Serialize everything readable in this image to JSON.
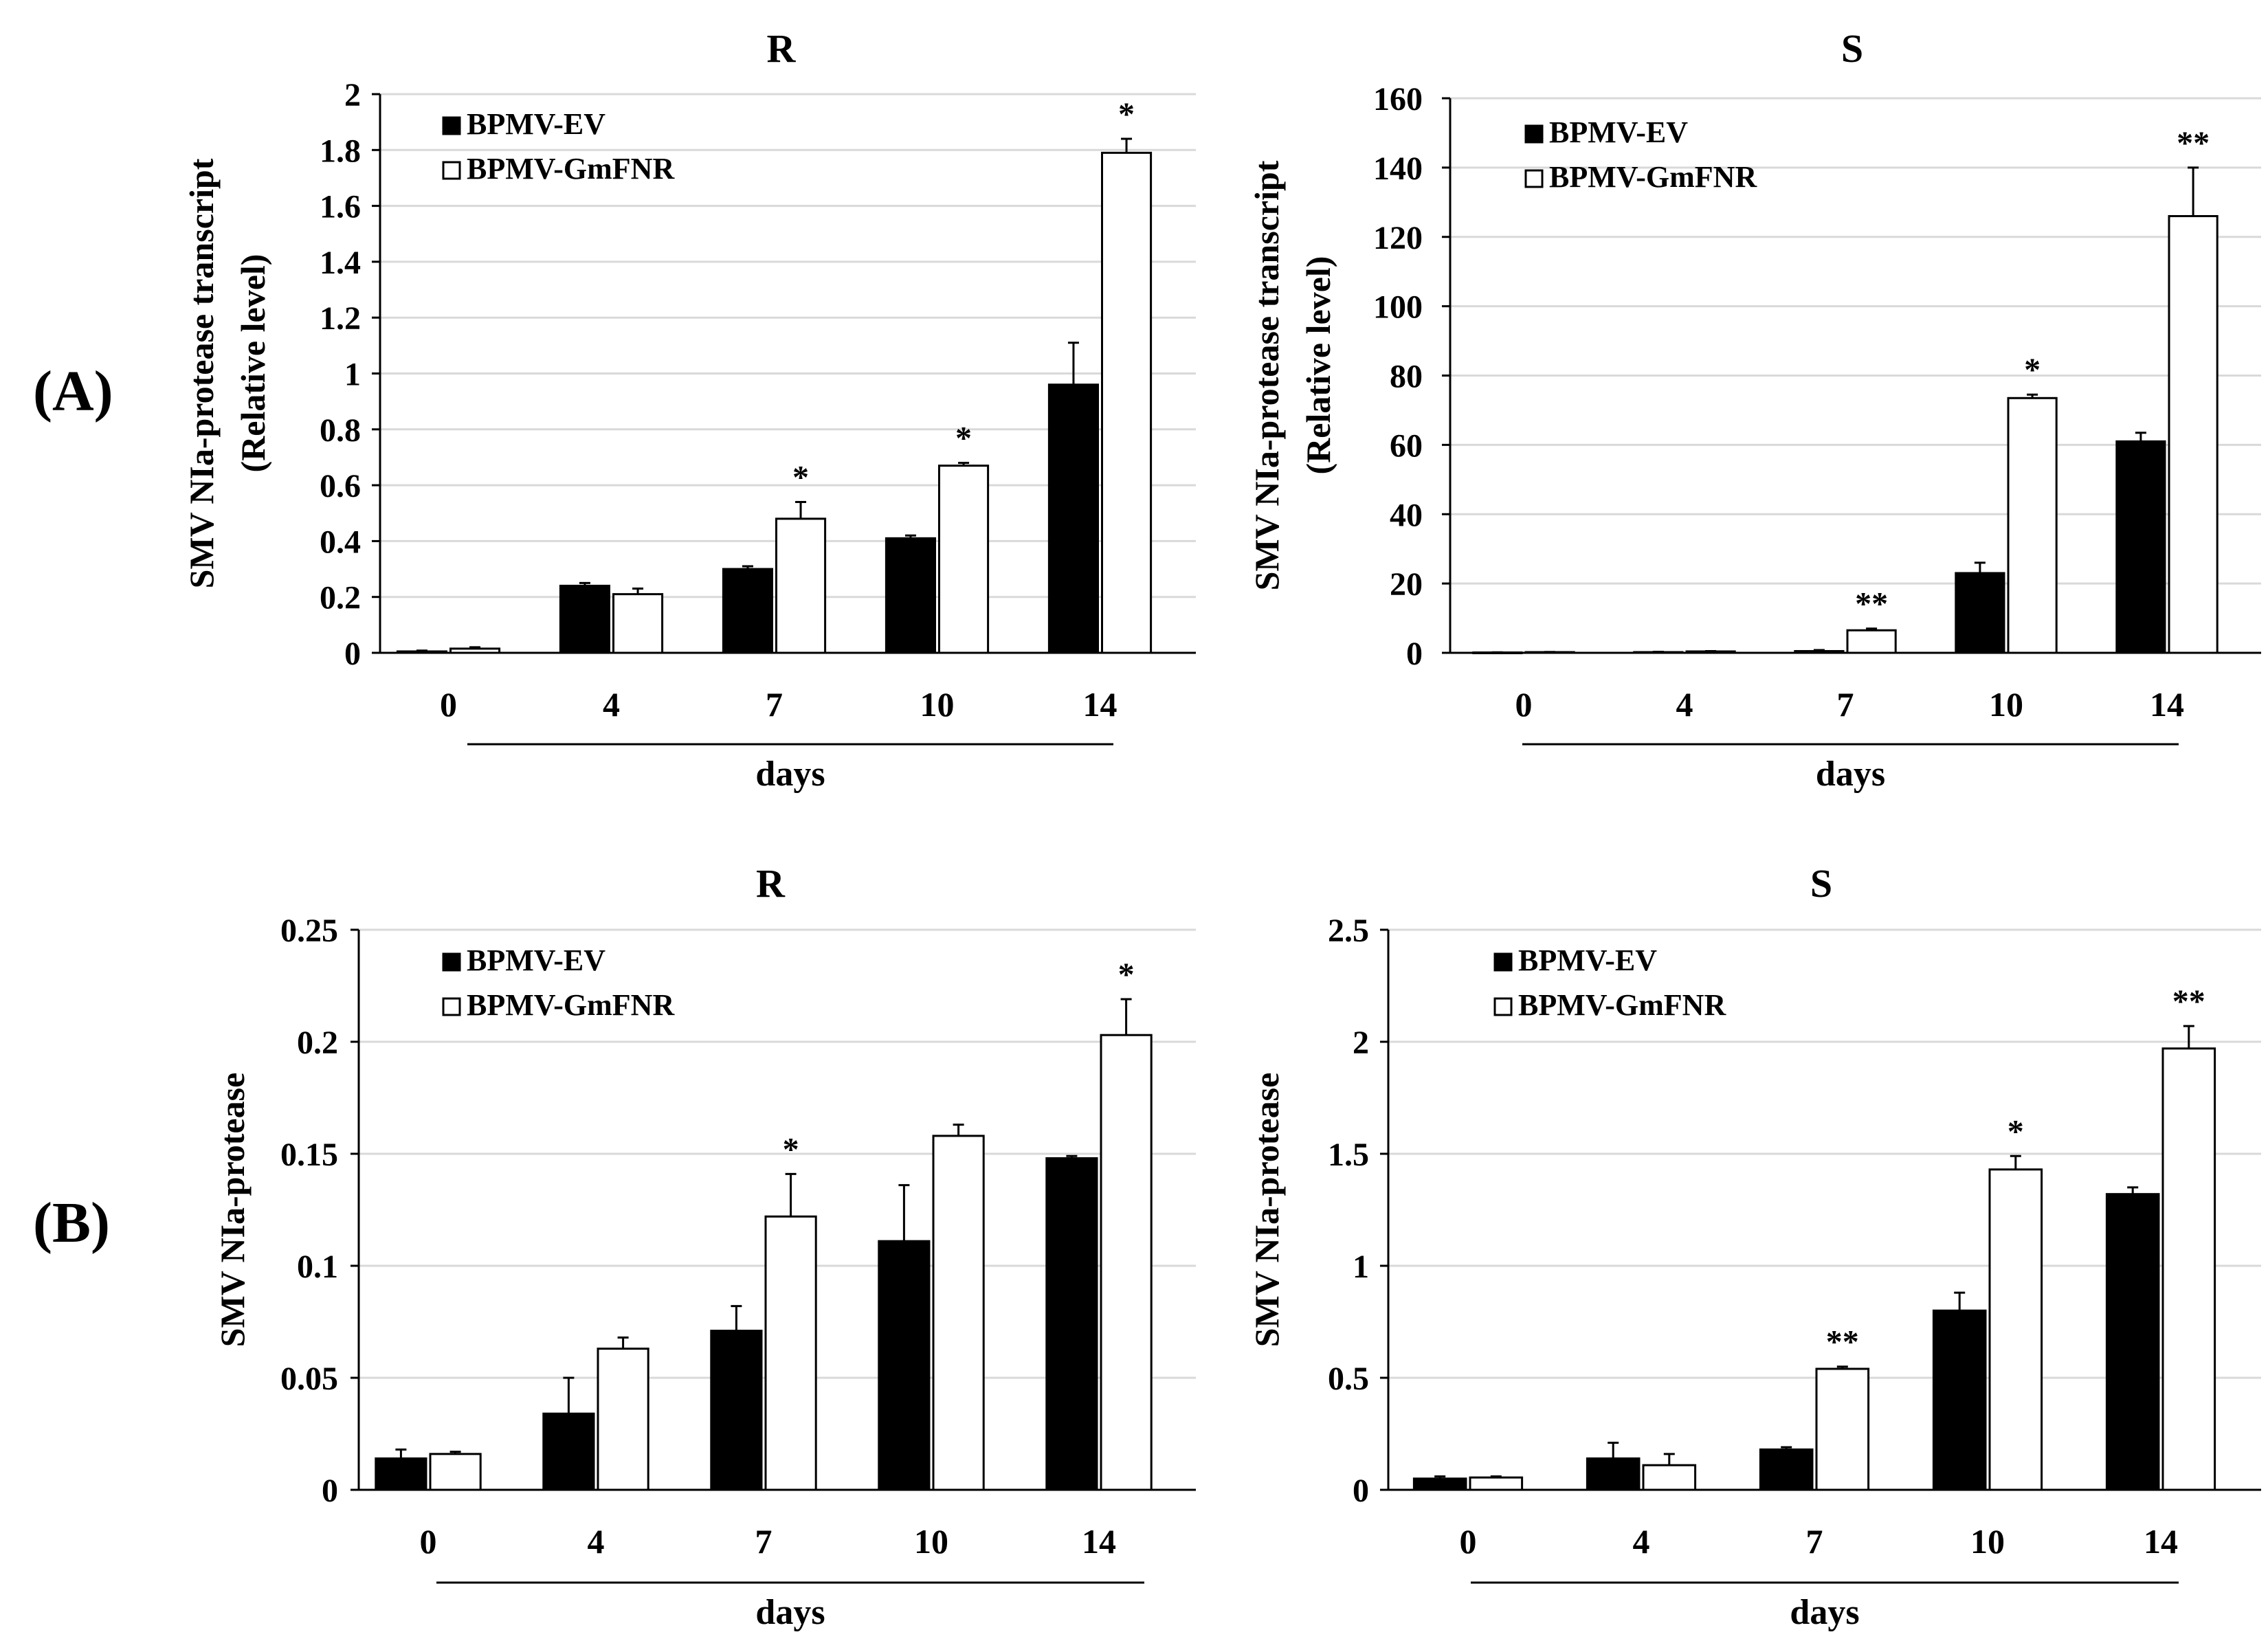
{
  "panel_labels": {
    "a": "(A)",
    "b": "(B)"
  },
  "colors": {
    "ev": "#000000",
    "gmfnr": "#ffffff",
    "grid": "#d9d9d9",
    "axis": "#000000"
  },
  "chart_data": [
    {
      "type": "bar",
      "title": "R",
      "ylabel_line1": "SMV NIa-protease transcript",
      "ylabel_line2": "(Relative level)",
      "xlabel": "days",
      "categories": [
        "0",
        "4",
        "7",
        "10",
        "14"
      ],
      "ylim": [
        0,
        2
      ],
      "yticks": [
        "0",
        "0.2",
        "0.4",
        "0.6",
        "0.8",
        "1",
        "1.2",
        "1.4",
        "1.6",
        "1.8",
        "2"
      ],
      "grid": true,
      "legend_position": "top-left",
      "series": [
        {
          "name": "BPMV-EV",
          "fill": "#000000",
          "values": [
            0.005,
            0.24,
            0.3,
            0.41,
            0.96
          ],
          "errors": [
            0.003,
            0.01,
            0.01,
            0.01,
            0.15
          ]
        },
        {
          "name": "BPMV-GmFNR",
          "fill": "#ffffff",
          "values": [
            0.015,
            0.21,
            0.48,
            0.67,
            1.79
          ],
          "errors": [
            0.005,
            0.02,
            0.06,
            0.01,
            0.05
          ]
        }
      ],
      "annotations": [
        "",
        "",
        "*",
        "*",
        "*"
      ]
    },
    {
      "type": "bar",
      "title": "S",
      "ylabel_line1": "SMV NIa-protease transcript",
      "ylabel_line2": "(Relative level)",
      "xlabel": "days",
      "categories": [
        "0",
        "4",
        "7",
        "10",
        "14"
      ],
      "ylim": [
        0,
        160
      ],
      "yticks": [
        "0",
        "20",
        "40",
        "60",
        "80",
        "100",
        "120",
        "140",
        "160"
      ],
      "grid": true,
      "legend_position": "top-left",
      "series": [
        {
          "name": "BPMV-EV",
          "fill": "#000000",
          "values": [
            0.1,
            0.2,
            0.5,
            23,
            61
          ],
          "errors": [
            0.05,
            0.1,
            0.3,
            3,
            2.5
          ]
        },
        {
          "name": "BPMV-GmFNR",
          "fill": "#ffffff",
          "values": [
            0.2,
            0.4,
            6.5,
            73.5,
            126
          ],
          "errors": [
            0.05,
            0.1,
            0.5,
            1,
            14
          ]
        }
      ],
      "annotations": [
        "",
        "",
        "**",
        "*",
        "**"
      ]
    },
    {
      "type": "bar",
      "title": "R",
      "ylabel_line1": "SMV NIa-protease",
      "ylabel_line2": "",
      "xlabel": "days",
      "categories": [
        "0",
        "4",
        "7",
        "10",
        "14"
      ],
      "ylim": [
        0,
        0.25
      ],
      "yticks": [
        "0",
        "0.05",
        "0.1",
        "0.15",
        "0.2",
        "0.25"
      ],
      "grid": true,
      "legend_position": "top-left",
      "series": [
        {
          "name": "BPMV-EV",
          "fill": "#000000",
          "values": [
            0.014,
            0.034,
            0.071,
            0.111,
            0.148
          ],
          "errors": [
            0.004,
            0.016,
            0.011,
            0.025,
            0.001
          ]
        },
        {
          "name": "BPMV-GmFNR",
          "fill": "#ffffff",
          "values": [
            0.016,
            0.063,
            0.122,
            0.158,
            0.203
          ],
          "errors": [
            0.001,
            0.005,
            0.019,
            0.005,
            0.016
          ]
        }
      ],
      "annotations": [
        "",
        "",
        "*",
        "",
        "*"
      ]
    },
    {
      "type": "bar",
      "title": "S",
      "ylabel_line1": "SMV NIa-protease",
      "ylabel_line2": "",
      "xlabel": "days",
      "categories": [
        "0",
        "4",
        "7",
        "10",
        "14"
      ],
      "ylim": [
        0,
        2.5
      ],
      "yticks": [
        "0",
        "0.5",
        "1",
        "1.5",
        "2",
        "2.5"
      ],
      "grid": true,
      "legend_position": "top-left",
      "series": [
        {
          "name": "BPMV-EV",
          "fill": "#000000",
          "values": [
            0.05,
            0.14,
            0.18,
            0.8,
            1.32
          ],
          "errors": [
            0.01,
            0.07,
            0.01,
            0.08,
            0.03
          ]
        },
        {
          "name": "BPMV-GmFNR",
          "fill": "#ffffff",
          "values": [
            0.055,
            0.11,
            0.54,
            1.43,
            1.97
          ],
          "errors": [
            0.005,
            0.05,
            0.01,
            0.06,
            0.1
          ]
        }
      ],
      "annotations": [
        "",
        "",
        "**",
        "*",
        "**"
      ]
    }
  ]
}
